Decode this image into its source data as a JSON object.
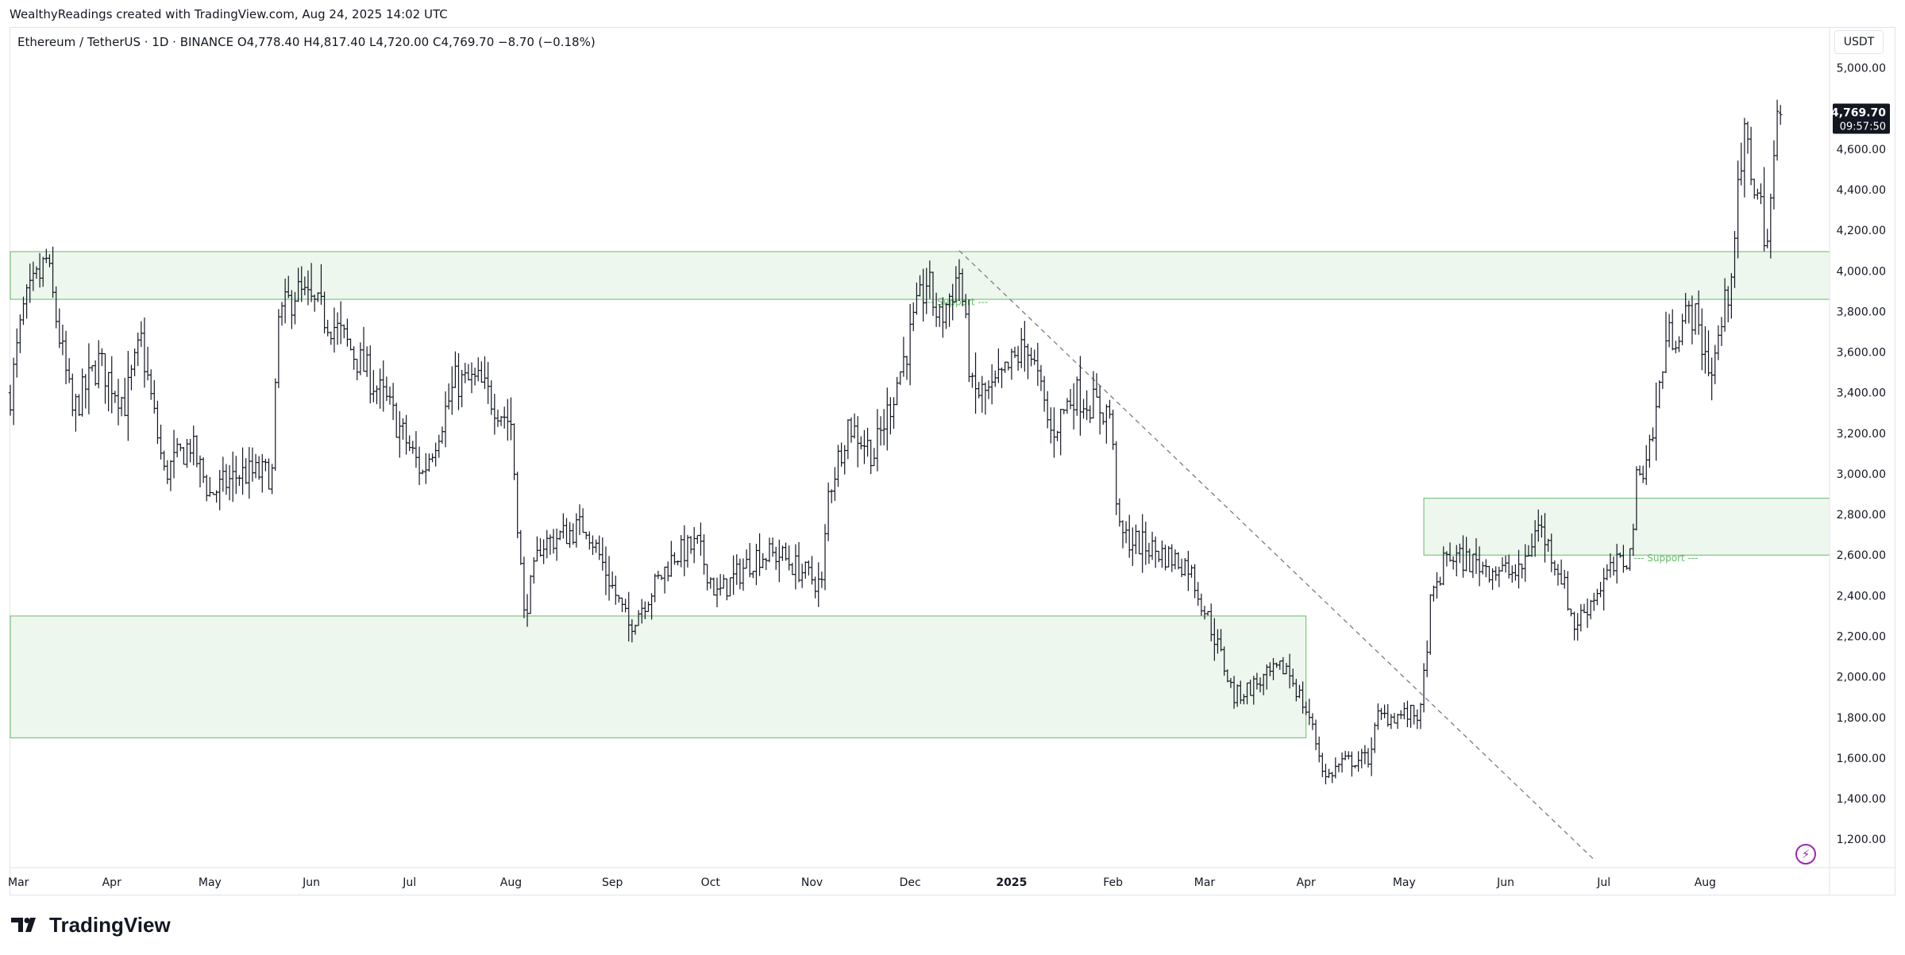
{
  "header": {
    "attribution": "WealthyReadings created with TradingView.com, Aug 24, 2025 14:02 UTC",
    "legend": "Ethereum / TetherUS · 1D · BINANCE  O4,778.40  H4,817.40  L4,720.00  C4,769.70  −8.70 (−0.18%)",
    "currency_button": "USDT"
  },
  "chart_data": {
    "type": "ohlc",
    "instrument": "Ethereum / TetherUS",
    "interval": "1D",
    "exchange": "BINANCE",
    "last_bar": {
      "open": 4778.4,
      "high": 4817.4,
      "low": 4720.0,
      "close": 4769.7,
      "change": -8.7,
      "change_pct": -0.18
    },
    "price_label": "4,769.70",
    "countdown": "09:57:50",
    "y_ticks": [
      1200,
      1400,
      1600,
      1800,
      2000,
      2200,
      2400,
      2600,
      2800,
      3000,
      3200,
      3400,
      3600,
      3800,
      4000,
      4200,
      4400,
      4600,
      5000
    ],
    "y_range": [
      1060,
      5100
    ],
    "x_range": [
      "2024-03-01",
      "2025-09-08"
    ],
    "x_ticks": [
      {
        "label": "Mar",
        "date": "2024-03-01"
      },
      {
        "label": "Apr",
        "date": "2024-04-01"
      },
      {
        "label": "May",
        "date": "2024-05-01"
      },
      {
        "label": "Jun",
        "date": "2024-06-01"
      },
      {
        "label": "Jul",
        "date": "2024-07-01"
      },
      {
        "label": "Aug",
        "date": "2024-08-01"
      },
      {
        "label": "Sep",
        "date": "2024-09-01"
      },
      {
        "label": "Oct",
        "date": "2024-10-01"
      },
      {
        "label": "Nov",
        "date": "2024-11-01"
      },
      {
        "label": "Dec",
        "date": "2024-12-01"
      },
      {
        "label": "2025",
        "date": "2025-01-01",
        "bold": true
      },
      {
        "label": "Feb",
        "date": "2025-02-01"
      },
      {
        "label": "Mar",
        "date": "2025-03-01"
      },
      {
        "label": "Apr",
        "date": "2025-04-01"
      },
      {
        "label": "May",
        "date": "2025-05-01"
      },
      {
        "label": "Jun",
        "date": "2025-06-01"
      },
      {
        "label": "Jul",
        "date": "2025-07-01"
      },
      {
        "label": "Aug",
        "date": "2025-08-01"
      }
    ],
    "anchors": [
      [
        "2024-03-01",
        3400
      ],
      [
        "2024-03-05",
        3800
      ],
      [
        "2024-03-12",
        4050
      ],
      [
        "2024-03-20",
        3300
      ],
      [
        "2024-03-28",
        3550
      ],
      [
        "2024-04-05",
        3350
      ],
      [
        "2024-04-10",
        3650
      ],
      [
        "2024-04-17",
        3000
      ],
      [
        "2024-04-25",
        3150
      ],
      [
        "2024-05-01",
        2900
      ],
      [
        "2024-05-10",
        3000
      ],
      [
        "2024-05-20",
        3000
      ],
      [
        "2024-05-22",
        3750
      ],
      [
        "2024-05-27",
        3900
      ],
      [
        "2024-06-07",
        3750
      ],
      [
        "2024-06-18",
        3500
      ],
      [
        "2024-06-24",
        3350
      ],
      [
        "2024-07-05",
        3000
      ],
      [
        "2024-07-15",
        3450
      ],
      [
        "2024-07-22",
        3450
      ],
      [
        "2024-08-01",
        3250
      ],
      [
        "2024-08-05",
        2300
      ],
      [
        "2024-08-10",
        2650
      ],
      [
        "2024-08-24",
        2750
      ],
      [
        "2024-09-06",
        2250
      ],
      [
        "2024-09-20",
        2600
      ],
      [
        "2024-09-27",
        2650
      ],
      [
        "2024-10-03",
        2400
      ],
      [
        "2024-10-15",
        2600
      ],
      [
        "2024-10-22",
        2600
      ],
      [
        "2024-11-04",
        2450
      ],
      [
        "2024-11-06",
        2900
      ],
      [
        "2024-11-12",
        3250
      ],
      [
        "2024-11-20",
        3100
      ],
      [
        "2024-11-26",
        3400
      ],
      [
        "2024-12-06",
        3950
      ],
      [
        "2024-12-10",
        3750
      ],
      [
        "2024-12-16",
        4000
      ],
      [
        "2024-12-20",
        3400
      ],
      [
        "2024-12-26",
        3400
      ],
      [
        "2025-01-06",
        3650
      ],
      [
        "2025-01-13",
        3200
      ],
      [
        "2025-01-20",
        3400
      ],
      [
        "2025-01-31",
        3300
      ],
      [
        "2025-02-03",
        2700
      ],
      [
        "2025-02-10",
        2650
      ],
      [
        "2025-02-24",
        2550
      ],
      [
        "2025-03-04",
        2200
      ],
      [
        "2025-03-10",
        1900
      ],
      [
        "2025-03-20",
        2000
      ],
      [
        "2025-03-26",
        2050
      ],
      [
        "2025-04-02",
        1800
      ],
      [
        "2025-04-07",
        1500
      ],
      [
        "2025-04-12",
        1580
      ],
      [
        "2025-04-20",
        1600
      ],
      [
        "2025-04-23",
        1800
      ],
      [
        "2025-05-06",
        1820
      ],
      [
        "2025-05-09",
        2350
      ],
      [
        "2025-05-14",
        2600
      ],
      [
        "2025-05-25",
        2550
      ],
      [
        "2025-06-05",
        2500
      ],
      [
        "2025-06-11",
        2750
      ],
      [
        "2025-06-18",
        2500
      ],
      [
        "2025-06-22",
        2250
      ],
      [
        "2025-07-02",
        2500
      ],
      [
        "2025-07-09",
        2600
      ],
      [
        "2025-07-11",
        2950
      ],
      [
        "2025-07-16",
        3200
      ],
      [
        "2025-07-20",
        3650
      ],
      [
        "2025-07-28",
        3800
      ],
      [
        "2025-08-03",
        3500
      ],
      [
        "2025-08-08",
        3900
      ],
      [
        "2025-08-13",
        4650
      ],
      [
        "2025-08-18",
        4300
      ],
      [
        "2025-08-20",
        4150
      ],
      [
        "2025-08-23",
        4700
      ],
      [
        "2025-08-24",
        4770
      ]
    ],
    "zones": [
      {
        "from": "2024-03-01",
        "to": "2025-09-08",
        "low": 3860,
        "high": 4095
      },
      {
        "from": "2024-03-01",
        "to": "2025-04-01",
        "low": 1700,
        "high": 2300
      },
      {
        "from": "2025-05-07",
        "to": "2025-09-08",
        "low": 2600,
        "high": 2880
      }
    ],
    "zone_labels": [
      {
        "text": "--- Support ---",
        "date": "2024-12-15",
        "price": 3830
      },
      {
        "text": "--- Support ---",
        "date": "2025-07-20",
        "price": 2570
      }
    ],
    "trendline": {
      "from": [
        "2024-12-16",
        4100
      ],
      "to": [
        "2025-06-28",
        1100
      ],
      "style": "dashed"
    },
    "colors": {
      "bars": "#131722",
      "zone_fill": "#eef7ee",
      "zone_border": "#66bb6a",
      "support_text": "#66bb6a",
      "trendline": "#787b86",
      "label_bg": "#131722"
    }
  },
  "footer": {
    "brand": "TradingView"
  },
  "icons": {
    "bolt": "lightning-bolt-icon",
    "logo": "tradingview-logo-icon"
  }
}
